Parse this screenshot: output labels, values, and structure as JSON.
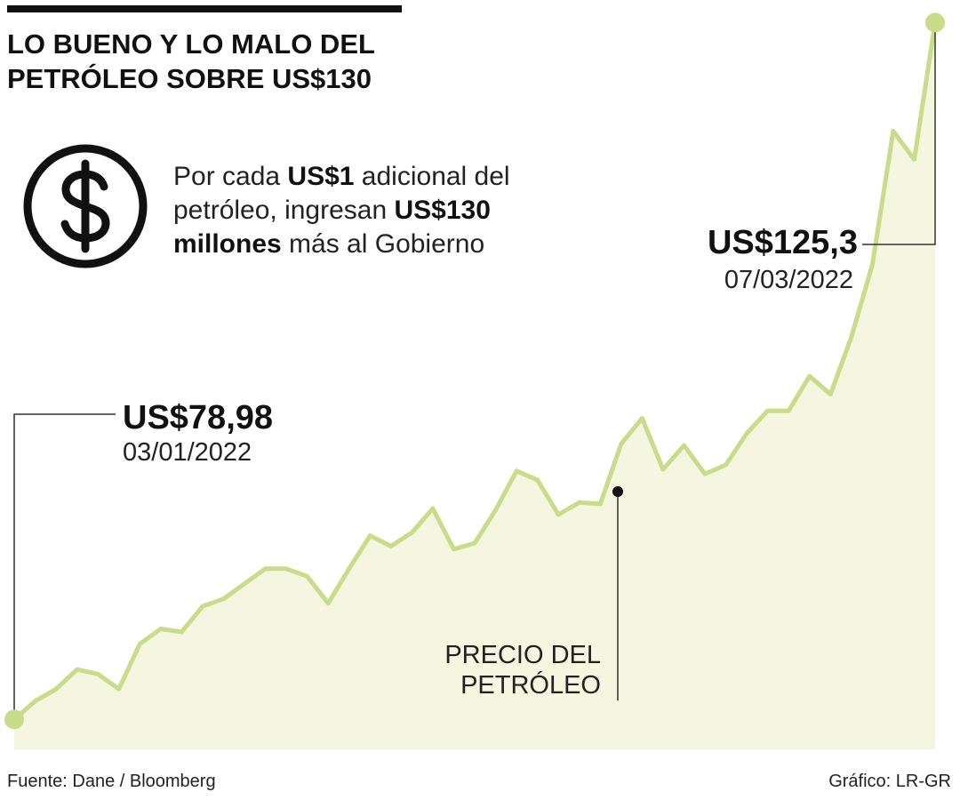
{
  "header": {
    "title_line1": "LO BUENO Y LO MALO DEL",
    "title_line2": "PETRÓLEO SOBRE US$130"
  },
  "info": {
    "t1": "Por cada ",
    "b1": "US$1",
    "t2": " adicional del petróleo, ingresan ",
    "b2": "US$130 millones",
    "t3": " más al Gobierno"
  },
  "annotations": {
    "start_value": "US$78,98",
    "start_date": "03/01/2022",
    "peak_value": "US$125,3",
    "peak_date": "07/03/2022",
    "series_label_line1": "PRECIO DEL",
    "series_label_line2": "PETRÓLEO"
  },
  "footer": {
    "source": "Fuente: Dane / Bloomberg",
    "credit": "Gráfico: LR-GR"
  },
  "colors": {
    "line": "#c8dc8a",
    "area": "#f4f6e0",
    "marker": "#c8dc8a",
    "leader": "#333333",
    "text": "#111111"
  },
  "icons": [
    "dollar-icon"
  ],
  "chart_data": {
    "type": "area",
    "title": "",
    "xlabel": "",
    "ylabel": "",
    "x_start": "03/01/2022",
    "x_end": "07/03/2022",
    "ylim": [
      78,
      125.5
    ],
    "series": [
      {
        "name": "PRECIO DEL PETRÓLEO",
        "values": [
          78.98,
          80.2,
          81.0,
          82.3,
          82.0,
          81.0,
          84.0,
          85.0,
          84.8,
          86.5,
          87.0,
          88.0,
          89.0,
          89.0,
          88.5,
          86.7,
          89.0,
          91.2,
          90.5,
          91.4,
          93.0,
          90.3,
          90.7,
          92.9,
          95.5,
          94.9,
          92.6,
          93.4,
          93.3,
          97.3,
          99.0,
          95.6,
          97.2,
          95.3,
          95.9,
          98.0,
          99.5,
          99.5,
          101.8,
          100.6,
          104.4,
          109.2,
          118.1,
          116.2,
          125.3
        ]
      }
    ]
  }
}
